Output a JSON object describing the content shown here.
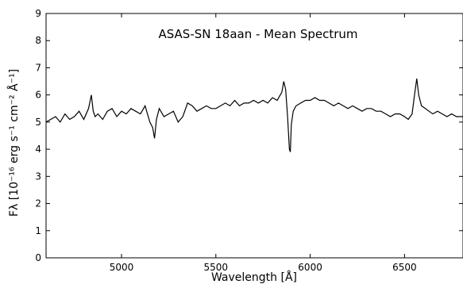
{
  "chart_data": {
    "type": "line",
    "title": "ASAS-SN 18aan - Mean Spectrum",
    "xlabel": "Wavelength [Å]",
    "ylabel": "Fλ [10⁻¹⁶ erg s⁻¹ cm⁻² Å⁻¹]",
    "xlim": [
      4600,
      6810
    ],
    "ylim": [
      0,
      9
    ],
    "xticks": [
      5000,
      5500,
      6000,
      6500
    ],
    "yticks": [
      0,
      1,
      2,
      3,
      4,
      5,
      6,
      7,
      8,
      9
    ],
    "grid": false,
    "series": [
      {
        "color": "#000000",
        "x": [
          4600,
          4625,
          4650,
          4675,
          4700,
          4725,
          4750,
          4775,
          4800,
          4825,
          4840,
          4850,
          4860,
          4875,
          4900,
          4925,
          4950,
          4975,
          5000,
          5025,
          5050,
          5075,
          5100,
          5125,
          5150,
          5165,
          5175,
          5185,
          5200,
          5225,
          5250,
          5275,
          5300,
          5325,
          5350,
          5375,
          5400,
          5425,
          5450,
          5475,
          5500,
          5525,
          5550,
          5575,
          5600,
          5625,
          5650,
          5675,
          5700,
          5725,
          5750,
          5775,
          5800,
          5825,
          5850,
          5860,
          5870,
          5880,
          5890,
          5895,
          5900,
          5910,
          5925,
          5950,
          5975,
          6000,
          6025,
          6050,
          6075,
          6100,
          6125,
          6150,
          6175,
          6200,
          6225,
          6250,
          6275,
          6300,
          6325,
          6350,
          6375,
          6400,
          6425,
          6450,
          6475,
          6500,
          6520,
          6540,
          6555,
          6565,
          6575,
          6590,
          6610,
          6630,
          6650,
          6675,
          6700,
          6725,
          6750,
          6775,
          6810
        ],
        "y": [
          5.0,
          5.1,
          5.2,
          5.0,
          5.3,
          5.1,
          5.2,
          5.4,
          5.1,
          5.5,
          6.0,
          5.4,
          5.2,
          5.3,
          5.1,
          5.4,
          5.5,
          5.2,
          5.4,
          5.3,
          5.5,
          5.4,
          5.3,
          5.6,
          5.0,
          4.8,
          4.4,
          5.1,
          5.5,
          5.2,
          5.3,
          5.4,
          5.0,
          5.2,
          5.7,
          5.6,
          5.4,
          5.5,
          5.6,
          5.5,
          5.5,
          5.6,
          5.7,
          5.6,
          5.8,
          5.6,
          5.7,
          5.7,
          5.8,
          5.7,
          5.8,
          5.7,
          5.9,
          5.8,
          6.1,
          6.5,
          6.2,
          5.2,
          4.0,
          3.9,
          4.9,
          5.4,
          5.6,
          5.7,
          5.8,
          5.8,
          5.9,
          5.8,
          5.8,
          5.7,
          5.6,
          5.7,
          5.6,
          5.5,
          5.6,
          5.5,
          5.4,
          5.5,
          5.5,
          5.4,
          5.4,
          5.3,
          5.2,
          5.3,
          5.3,
          5.2,
          5.1,
          5.3,
          6.1,
          6.6,
          6.0,
          5.6,
          5.5,
          5.4,
          5.3,
          5.4,
          5.3,
          5.2,
          5.3,
          5.2,
          5.2
        ]
      }
    ]
  }
}
